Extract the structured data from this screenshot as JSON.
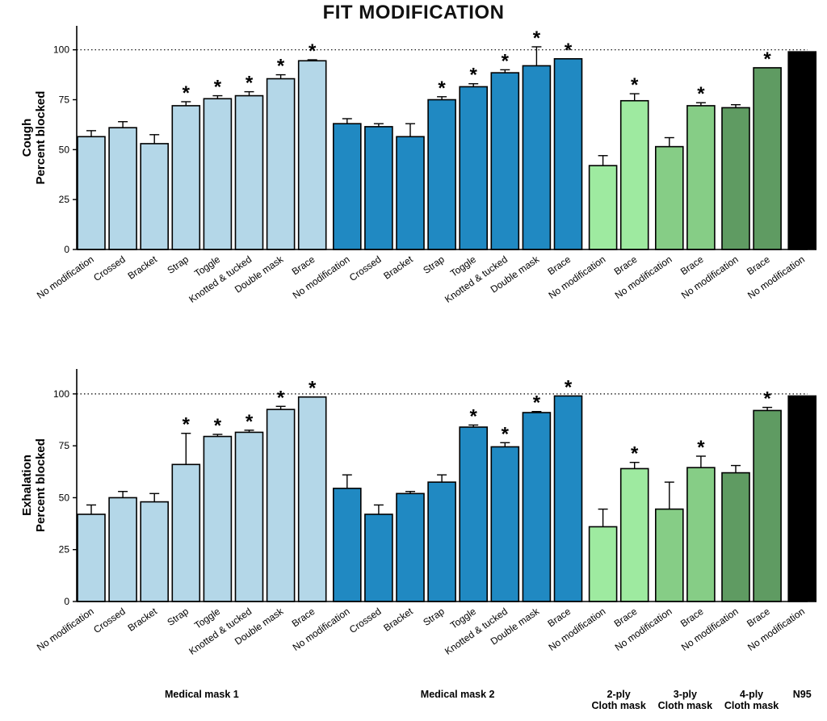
{
  "figure": {
    "title": "FIT MODIFICATION",
    "colors": {
      "medical_mask_1": "#b4d7e8",
      "medical_mask_2": "#2089c2",
      "ply2_cloth": "#9eeaa0",
      "ply3_cloth": "#86cd86",
      "ply4_cloth": "#5f9b62",
      "n95": "#000000"
    }
  },
  "groups": [
    {
      "label": "Medical mask 1",
      "color": "#b4d7e8"
    },
    {
      "label": "Medical mask 2",
      "color": "#2089c2"
    },
    {
      "label": "2-ply\nCloth mask",
      "color": "#9eeaa0"
    },
    {
      "label": "3-ply\nCloth mask",
      "color": "#86cd86"
    },
    {
      "label": "4-ply\nCloth mask",
      "color": "#5f9b62"
    },
    {
      "label": "N95",
      "color": "#000000"
    }
  ],
  "chart_data": [
    {
      "type": "bar",
      "ylabel": "Cough\nPercent blocked",
      "ylim": [
        0,
        112
      ],
      "yticks": [
        0,
        25,
        50,
        75,
        100
      ],
      "reference_line": 100,
      "categories": [
        "No modification",
        "Crossed",
        "Bracket",
        "Strap",
        "Toggle",
        "Knotted & tucked",
        "Double mask",
        "Brace",
        "No modification",
        "Crossed",
        "Bracket",
        "Strap",
        "Toggle",
        "Knotted & tucked",
        "Double mask",
        "Brace",
        "No modification",
        "Brace",
        "No modification",
        "Brace",
        "No modification",
        "Brace",
        "No modification"
      ],
      "group_index": [
        0,
        0,
        0,
        0,
        0,
        0,
        0,
        0,
        1,
        1,
        1,
        1,
        1,
        1,
        1,
        1,
        2,
        2,
        3,
        3,
        4,
        4,
        5
      ],
      "values": [
        56.5,
        61,
        53,
        72,
        75.5,
        77,
        85.5,
        94.5,
        63,
        61.5,
        56.5,
        75,
        81.5,
        88.5,
        92,
        95.5,
        42,
        74.5,
        51.5,
        72,
        71,
        91,
        99
      ],
      "errors": [
        3,
        3,
        4.5,
        2,
        1.5,
        2,
        2,
        0.5,
        2.5,
        1.5,
        6.5,
        1.5,
        1.5,
        1.5,
        9.5,
        0,
        5,
        3.5,
        4.5,
        1.5,
        1.5,
        0,
        0
      ],
      "significant": [
        false,
        false,
        false,
        true,
        true,
        true,
        true,
        true,
        false,
        false,
        false,
        true,
        true,
        true,
        true,
        true,
        false,
        true,
        false,
        true,
        false,
        true,
        false
      ]
    },
    {
      "type": "bar",
      "ylabel": "Exhalation\nPercent blocked",
      "ylim": [
        0,
        112
      ],
      "yticks": [
        0,
        25,
        50,
        75,
        100
      ],
      "reference_line": 100,
      "categories": [
        "No modification",
        "Crossed",
        "Bracket",
        "Strap",
        "Toggle",
        "Knotted & tucked",
        "Double mask",
        "Brace",
        "No modification",
        "Crossed",
        "Bracket",
        "Strap",
        "Toggle",
        "Knotted & tucked",
        "Double mask",
        "Brace",
        "No modification",
        "Brace",
        "No modification",
        "Brace",
        "No modification",
        "Brace",
        "No modification"
      ],
      "group_index": [
        0,
        0,
        0,
        0,
        0,
        0,
        0,
        0,
        1,
        1,
        1,
        1,
        1,
        1,
        1,
        1,
        2,
        2,
        3,
        3,
        4,
        4,
        5
      ],
      "values": [
        42,
        50,
        48,
        66,
        79.5,
        81.5,
        92.5,
        98.5,
        54.5,
        42,
        52,
        57.5,
        84,
        74.5,
        91,
        99,
        36,
        64,
        44.5,
        64.5,
        62,
        92,
        99
      ],
      "errors": [
        4.5,
        3,
        4,
        15,
        1,
        1,
        1.5,
        0,
        6.5,
        4.5,
        1,
        3.5,
        1,
        2,
        0.5,
        0,
        8.5,
        3,
        13,
        5.5,
        3.5,
        1.5,
        0
      ],
      "significant": [
        false,
        false,
        false,
        true,
        true,
        true,
        true,
        true,
        false,
        false,
        false,
        false,
        true,
        true,
        true,
        true,
        false,
        true,
        false,
        true,
        false,
        true,
        false
      ]
    }
  ]
}
